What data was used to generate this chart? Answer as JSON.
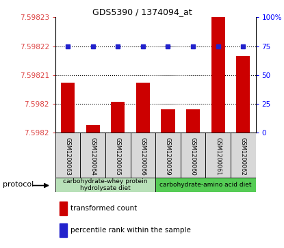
{
  "title": "GDS5390 / 1374094_at",
  "categories": [
    "GSM1200063",
    "GSM1200064",
    "GSM1200065",
    "GSM1200066",
    "GSM1200059",
    "GSM1200060",
    "GSM1200061",
    "GSM1200062"
  ],
  "bar_values": [
    7.598213,
    7.598202,
    7.598208,
    7.598213,
    7.598206,
    7.598206,
    7.59823,
    7.59822
  ],
  "percentile_values": [
    75,
    75,
    75,
    75,
    75,
    75,
    75,
    75
  ],
  "y_min": 7.5982,
  "y_max": 7.59823,
  "y_ticks": [
    7.5982,
    7.5982,
    7.59821,
    7.59822,
    7.59823
  ],
  "y_tick_labels": [
    "7.5982",
    "7.5982",
    "7.59821",
    "7.59822",
    "7.59823"
  ],
  "bar_color": "#cc0000",
  "percentile_color": "#2222cc",
  "group1_label": "carbohydrate-whey protein\nhydrolysate diet",
  "group2_label": "carbohydrate-amino acid diet",
  "group1_color": "#b8e0b8",
  "group2_color": "#55cc55",
  "protocol_label": "protocol",
  "legend_bar": "transformed count",
  "legend_pct": "percentile rank within the sample",
  "right_y_ticks": [
    0,
    25,
    50,
    75,
    100
  ],
  "right_y_labels": [
    "0",
    "25",
    "50",
    "75",
    "100%"
  ],
  "grid_ticks": [
    7.5982,
    7.59821,
    7.59822
  ],
  "bg_color": "#ffffff",
  "cell_bg": "#d8d8d8"
}
